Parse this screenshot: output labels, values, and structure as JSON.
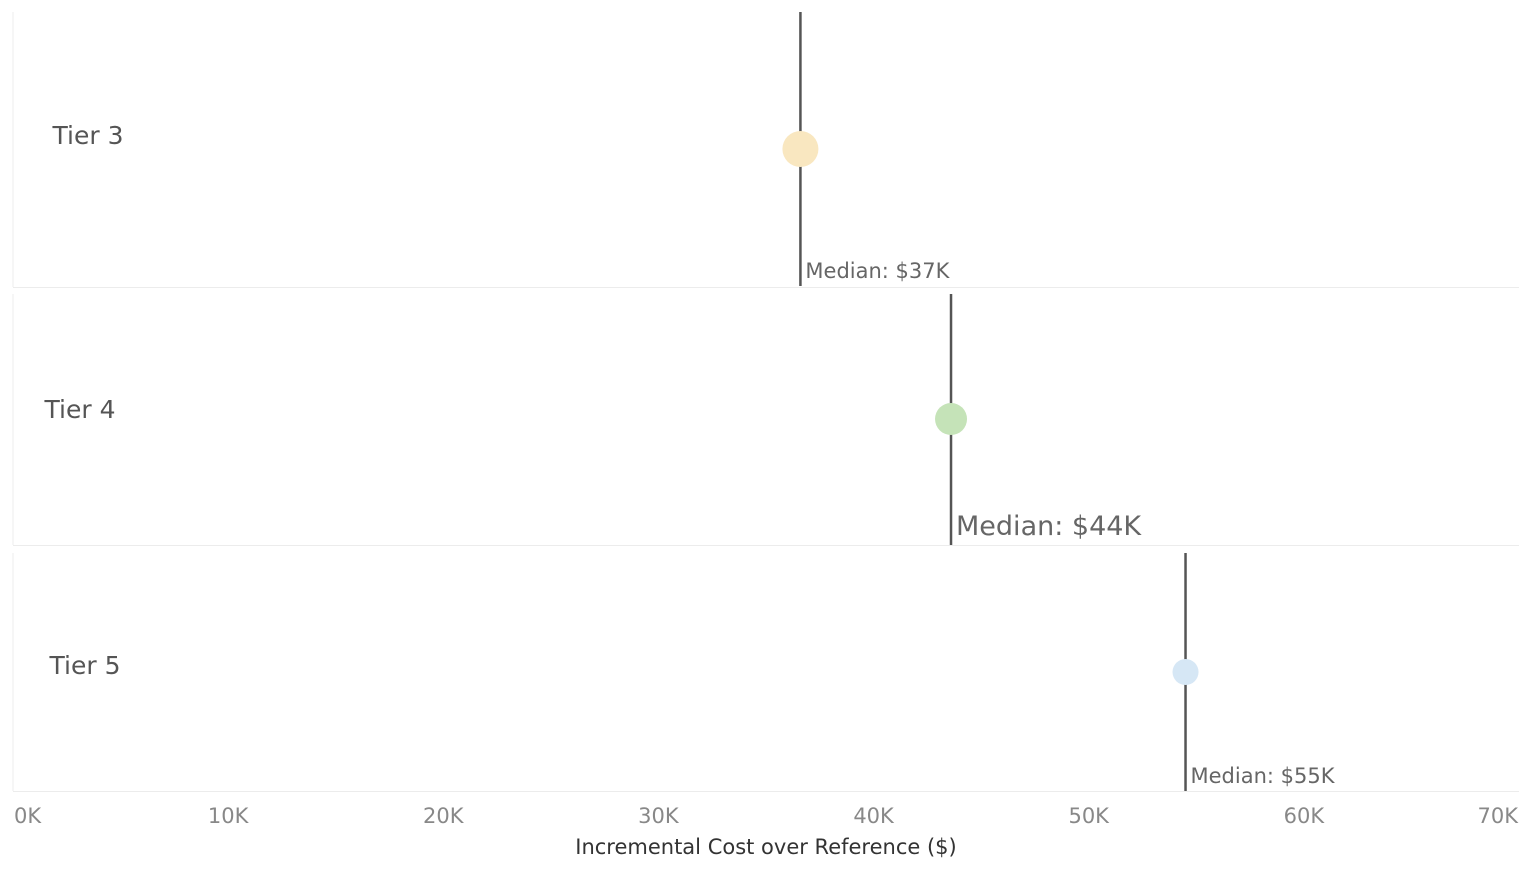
{
  "chart_data": {
    "type": "scatter",
    "title": "",
    "xlabel": "Incremental Cost over Reference ($)",
    "ylabel": "",
    "xlim": [
      0,
      70000
    ],
    "x_ticks": [
      {
        "value": 0,
        "label": "0K"
      },
      {
        "value": 10000,
        "label": "10K"
      },
      {
        "value": 20000,
        "label": "20K"
      },
      {
        "value": 30000,
        "label": "30K"
      },
      {
        "value": 40000,
        "label": "40K"
      },
      {
        "value": 50000,
        "label": "50K"
      },
      {
        "value": 60000,
        "label": "60K"
      },
      {
        "value": 70000,
        "label": "70K"
      }
    ],
    "grid": false,
    "rows": [
      {
        "label": "Tier 3",
        "x": 36600,
        "color": "#f9e7c0",
        "median": 36600,
        "median_label": "Median: $37K"
      },
      {
        "label": "Tier 4",
        "x": 43600,
        "color": "#c5e3b8",
        "median": 43600,
        "median_label": "Median: $44K"
      },
      {
        "label": "Tier 5",
        "x": 54500,
        "color": "#d6e7f5",
        "median": 54500,
        "median_label": "Median: $55K"
      }
    ],
    "colors": {
      "median_line": "#555555",
      "row_divider": "#ececec",
      "tier_label": "#555555",
      "tick_label": "#888888",
      "axis_title": "#333333"
    }
  }
}
